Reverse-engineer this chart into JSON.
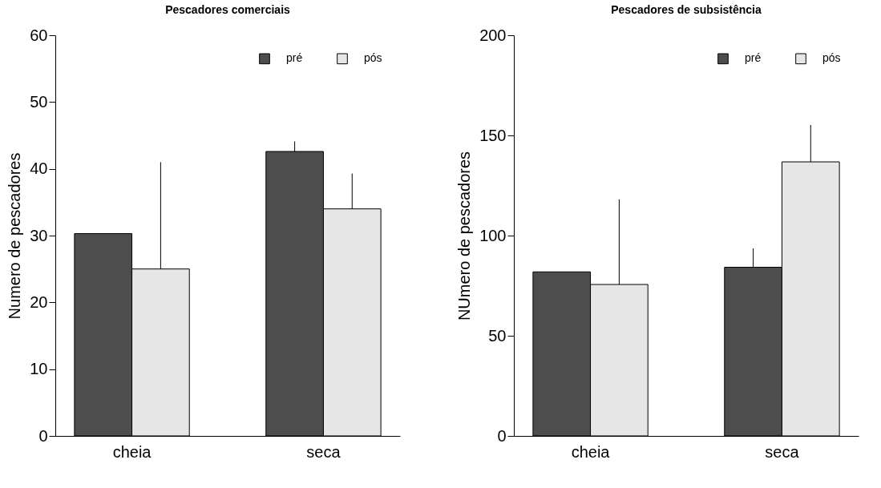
{
  "chart_data": [
    {
      "type": "bar",
      "title": "Pescadores comerciais",
      "ylabel": "Numero de pescadores",
      "categories": [
        "cheia",
        "seca"
      ],
      "legend": "top right",
      "ylim": [
        0,
        60
      ],
      "yticks": [
        0,
        10,
        20,
        30,
        40,
        50,
        60
      ],
      "series": [
        {
          "name": "pré",
          "color": "#4d4d4d",
          "values": [
            30.3,
            42.6
          ],
          "errors": [
            null,
            [
              42.6,
              44.1
            ]
          ]
        },
        {
          "name": "pós",
          "color": "#e6e6e6",
          "values": [
            25.0,
            34.0
          ],
          "errors": [
            [
              25.0,
              41.0
            ],
            [
              34.0,
              39.3
            ]
          ]
        }
      ]
    },
    {
      "type": "bar",
      "title": "Pescadores de subsistência",
      "ylabel": "NUmero de pescadores",
      "categories": [
        "cheia",
        "seca"
      ],
      "legend": "top right",
      "ylim": [
        0,
        200
      ],
      "yticks": [
        0,
        50,
        100,
        150,
        200
      ],
      "series": [
        {
          "name": "pré",
          "color": "#4d4d4d",
          "values": [
            81.9,
            84.2
          ],
          "errors": [
            null,
            [
              84.2,
              93.6
            ]
          ]
        },
        {
          "name": "pós",
          "color": "#e6e6e6",
          "values": [
            75.6,
            136.8
          ],
          "errors": [
            [
              75.6,
              118.1
            ],
            [
              136.8,
              155.2
            ]
          ]
        }
      ]
    }
  ]
}
